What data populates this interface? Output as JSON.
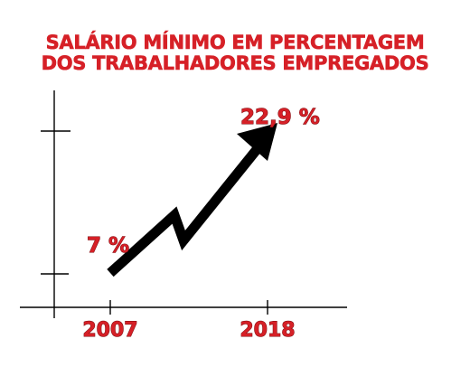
{
  "chart_data": {
    "type": "line",
    "title_line1": "SALÁRIO MÍNIMO EM PERCENTAGEM",
    "title_line2": "DOS TRABALHADORES EMPREGADOS",
    "categories": [
      "2007",
      "2018"
    ],
    "values": [
      7,
      22.9
    ],
    "data_labels": [
      "7 %",
      "22,9 %"
    ],
    "xlabel": "",
    "ylabel": "",
    "grid": false,
    "line_color": "#000000",
    "label_color": "#d62027"
  }
}
